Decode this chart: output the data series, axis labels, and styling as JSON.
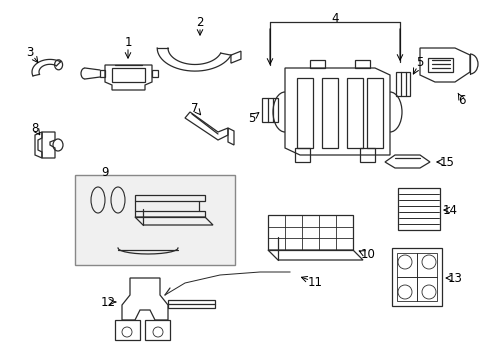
{
  "bg_color": "#ffffff",
  "line_color": "#2a2a2a",
  "fig_width": 4.89,
  "fig_height": 3.6,
  "dpi": 100,
  "label_fontsize": 8.5,
  "lw": 0.9
}
